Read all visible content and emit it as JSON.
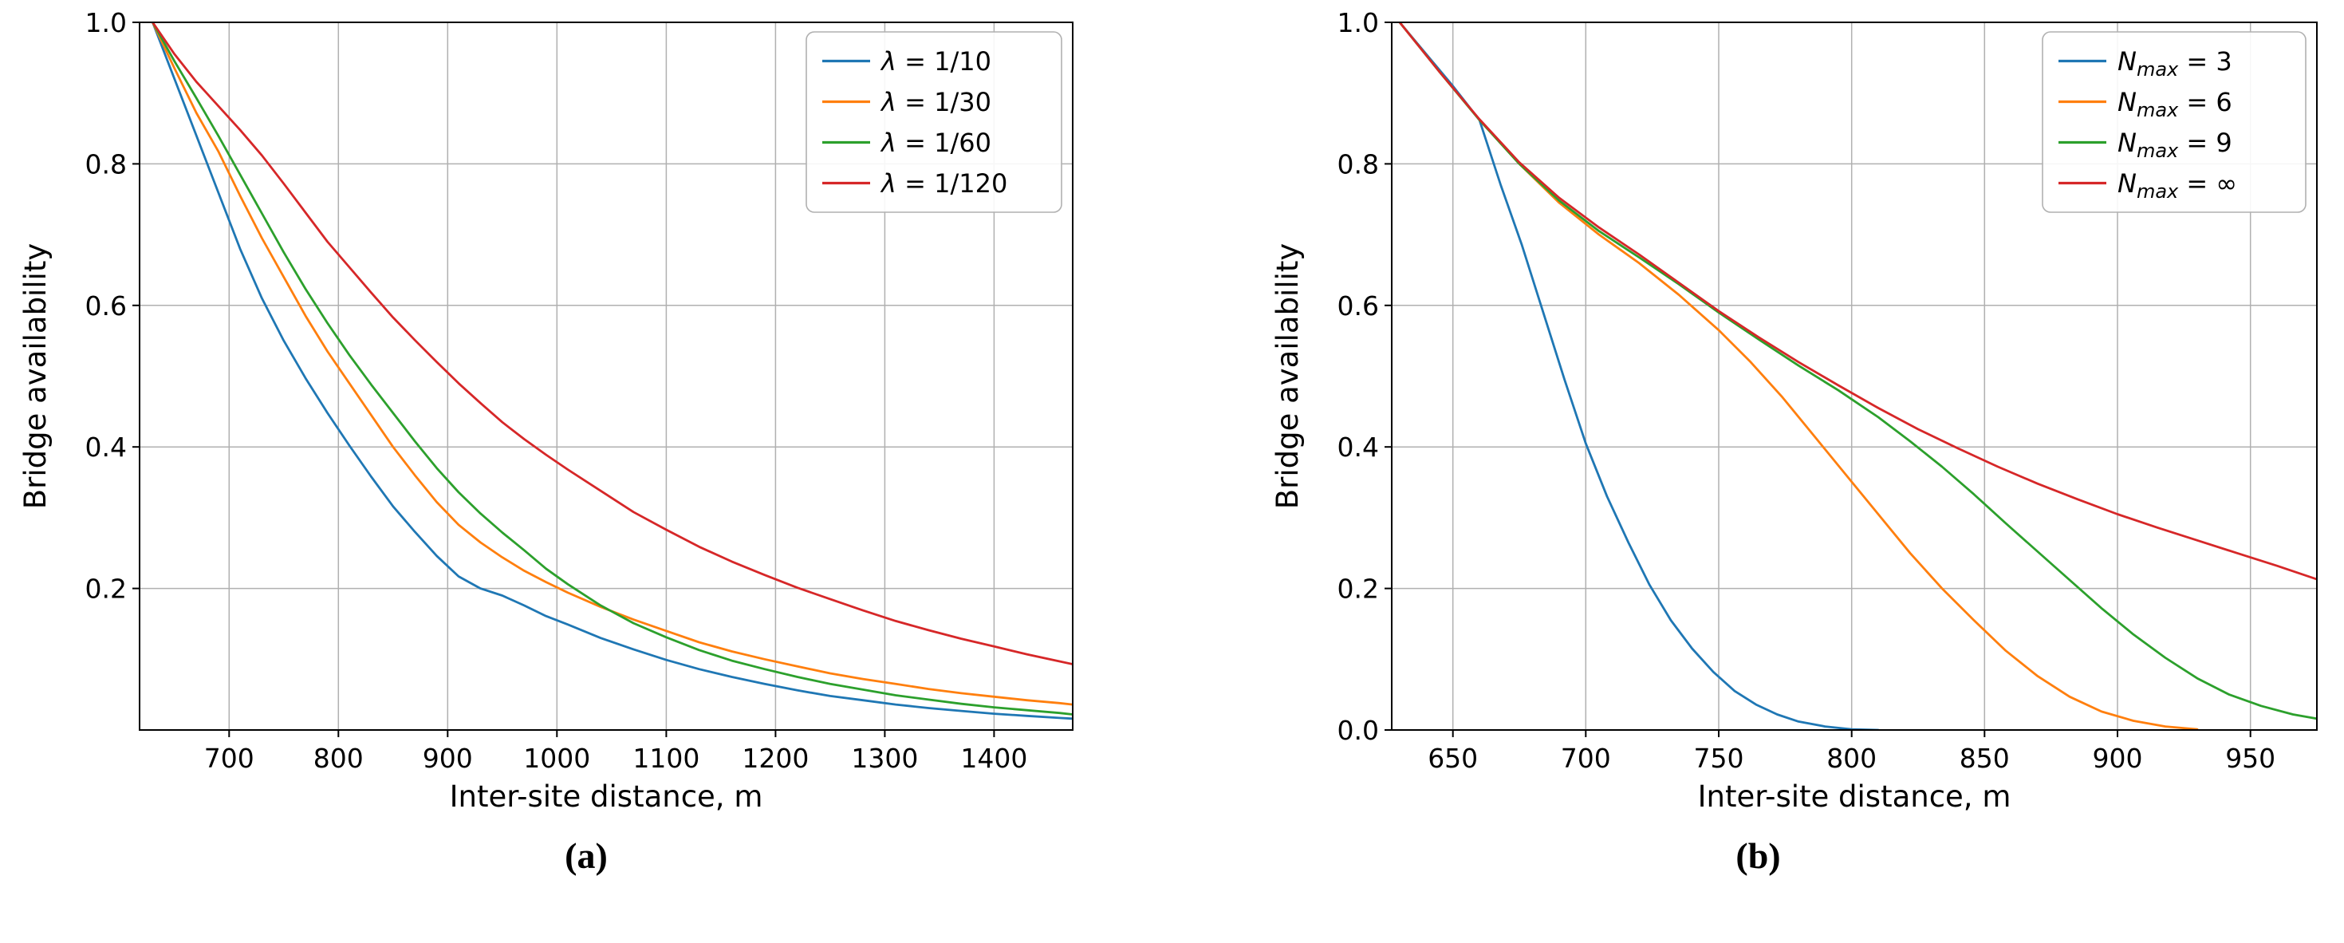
{
  "chart_data": [
    {
      "id": "a",
      "type": "line",
      "caption": "(a)",
      "xlabel": "Inter-site distance, m",
      "ylabel": "Bridge availability",
      "xlim": [
        618,
        1472
      ],
      "ylim": [
        0,
        1.0
      ],
      "xticks": [
        700,
        800,
        900,
        1000,
        1100,
        1200,
        1300,
        1400
      ],
      "yticks": [
        0.2,
        0.4,
        0.6,
        0.8,
        1.0
      ],
      "grid": true,
      "legend_position": "upper right",
      "series": [
        {
          "label": {
            "sym": "λ",
            "sub": "",
            "rest": " = 1/10"
          },
          "color": "#1f77b4",
          "x": [
            630,
            650,
            670,
            690,
            710,
            730,
            750,
            770,
            790,
            810,
            830,
            850,
            870,
            890,
            910,
            930,
            950,
            970,
            990,
            1010,
            1040,
            1070,
            1100,
            1130,
            1160,
            1190,
            1220,
            1250,
            1280,
            1310,
            1340,
            1370,
            1400,
            1430,
            1460,
            1472
          ],
          "y": [
            1.0,
            0.92,
            0.84,
            0.76,
            0.68,
            0.61,
            0.55,
            0.497,
            0.448,
            0.402,
            0.358,
            0.316,
            0.28,
            0.246,
            0.217,
            0.2,
            0.19,
            0.176,
            0.161,
            0.149,
            0.13,
            0.114,
            0.099,
            0.086,
            0.075,
            0.065,
            0.056,
            0.048,
            0.042,
            0.036,
            0.031,
            0.027,
            0.023,
            0.02,
            0.017,
            0.016
          ]
        },
        {
          "label": {
            "sym": "λ",
            "sub": "",
            "rest": " = 1/30"
          },
          "color": "#ff7f0e",
          "x": [
            630,
            650,
            670,
            690,
            710,
            730,
            750,
            770,
            790,
            810,
            830,
            850,
            870,
            890,
            910,
            930,
            950,
            970,
            990,
            1010,
            1040,
            1070,
            1100,
            1130,
            1160,
            1190,
            1220,
            1250,
            1280,
            1310,
            1340,
            1370,
            1400,
            1430,
            1460,
            1472
          ],
          "y": [
            1.0,
            0.935,
            0.872,
            0.818,
            0.755,
            0.695,
            0.64,
            0.585,
            0.535,
            0.49,
            0.445,
            0.4,
            0.36,
            0.322,
            0.29,
            0.265,
            0.244,
            0.225,
            0.209,
            0.194,
            0.174,
            0.156,
            0.14,
            0.124,
            0.111,
            0.1,
            0.09,
            0.08,
            0.072,
            0.065,
            0.058,
            0.052,
            0.047,
            0.042,
            0.038,
            0.036
          ]
        },
        {
          "label": {
            "sym": "λ",
            "sub": "",
            "rest": " = 1/60"
          },
          "color": "#2ca02c",
          "x": [
            630,
            650,
            670,
            690,
            710,
            730,
            750,
            770,
            790,
            810,
            830,
            850,
            870,
            890,
            910,
            930,
            950,
            970,
            990,
            1010,
            1040,
            1070,
            1100,
            1130,
            1160,
            1190,
            1220,
            1250,
            1280,
            1310,
            1340,
            1370,
            1400,
            1430,
            1460,
            1472
          ],
          "y": [
            1.0,
            0.945,
            0.893,
            0.84,
            0.785,
            0.73,
            0.675,
            0.623,
            0.575,
            0.53,
            0.488,
            0.448,
            0.408,
            0.37,
            0.336,
            0.306,
            0.279,
            0.254,
            0.228,
            0.206,
            0.176,
            0.151,
            0.131,
            0.113,
            0.098,
            0.086,
            0.075,
            0.065,
            0.057,
            0.049,
            0.043,
            0.037,
            0.032,
            0.028,
            0.024,
            0.022
          ]
        },
        {
          "label": {
            "sym": "λ",
            "sub": "",
            "rest": " = 1/120"
          },
          "color": "#d62728",
          "x": [
            630,
            650,
            670,
            690,
            710,
            730,
            750,
            770,
            790,
            810,
            830,
            850,
            870,
            890,
            910,
            930,
            950,
            970,
            990,
            1010,
            1040,
            1070,
            1100,
            1130,
            1160,
            1190,
            1220,
            1250,
            1280,
            1310,
            1340,
            1370,
            1400,
            1430,
            1460,
            1472
          ],
          "y": [
            1.0,
            0.955,
            0.916,
            0.882,
            0.848,
            0.812,
            0.772,
            0.731,
            0.69,
            0.654,
            0.618,
            0.583,
            0.551,
            0.52,
            0.49,
            0.462,
            0.435,
            0.411,
            0.389,
            0.368,
            0.338,
            0.308,
            0.283,
            0.259,
            0.238,
            0.219,
            0.201,
            0.185,
            0.169,
            0.154,
            0.141,
            0.129,
            0.118,
            0.107,
            0.097,
            0.093
          ]
        }
      ]
    },
    {
      "id": "b",
      "type": "line",
      "caption": "(b)",
      "xlabel": "Inter-site distance, m",
      "ylabel": "Bridge availability",
      "xlim": [
        627,
        975
      ],
      "ylim": [
        0,
        1.0
      ],
      "xticks": [
        650,
        700,
        750,
        800,
        850,
        900,
        950
      ],
      "yticks": [
        0.0,
        0.2,
        0.4,
        0.6,
        0.8,
        1.0
      ],
      "grid": true,
      "legend_position": "upper right",
      "series": [
        {
          "label": {
            "sym": "N",
            "sub": "max",
            "rest": " = 3"
          },
          "color": "#1f77b4",
          "x": [
            630,
            640,
            650,
            660,
            668,
            676,
            684,
            692,
            700,
            708,
            716,
            724,
            732,
            740,
            748,
            756,
            764,
            772,
            780,
            790,
            800,
            810
          ],
          "y": [
            1.0,
            0.955,
            0.91,
            0.862,
            0.77,
            0.685,
            0.59,
            0.495,
            0.405,
            0.33,
            0.265,
            0.205,
            0.155,
            0.115,
            0.082,
            0.055,
            0.036,
            0.022,
            0.012,
            0.005,
            0.001,
            0.0
          ]
        },
        {
          "label": {
            "sym": "N",
            "sub": "max",
            "rest": " = 6"
          },
          "color": "#ff7f0e",
          "x": [
            630,
            645,
            660,
            675,
            690,
            705,
            720,
            735,
            750,
            762,
            774,
            786,
            798,
            810,
            822,
            834,
            846,
            858,
            870,
            882,
            894,
            906,
            918,
            930
          ],
          "y": [
            1.0,
            0.93,
            0.862,
            0.8,
            0.745,
            0.7,
            0.66,
            0.615,
            0.565,
            0.52,
            0.47,
            0.415,
            0.36,
            0.305,
            0.25,
            0.2,
            0.155,
            0.112,
            0.076,
            0.047,
            0.026,
            0.013,
            0.005,
            0.001
          ]
        },
        {
          "label": {
            "sym": "N",
            "sub": "max",
            "rest": " = 9"
          },
          "color": "#2ca02c",
          "x": [
            630,
            645,
            660,
            675,
            690,
            705,
            720,
            735,
            750,
            765,
            780,
            795,
            810,
            822,
            834,
            846,
            858,
            870,
            882,
            894,
            906,
            918,
            930,
            942,
            954,
            966,
            978,
            990
          ],
          "y": [
            1.0,
            0.93,
            0.862,
            0.8,
            0.748,
            0.705,
            0.668,
            0.63,
            0.59,
            0.552,
            0.515,
            0.48,
            0.442,
            0.408,
            0.372,
            0.333,
            0.292,
            0.252,
            0.212,
            0.172,
            0.135,
            0.102,
            0.073,
            0.05,
            0.034,
            0.022,
            0.014,
            0.008
          ]
        },
        {
          "label": {
            "sym": "N",
            "sub": "max",
            "rest": " = ∞"
          },
          "color": "#d62728",
          "x": [
            630,
            645,
            660,
            675,
            690,
            705,
            720,
            735,
            750,
            765,
            780,
            795,
            810,
            825,
            840,
            855,
            870,
            885,
            900,
            915,
            930,
            945,
            960,
            975,
            990
          ],
          "y": [
            1.0,
            0.93,
            0.863,
            0.802,
            0.752,
            0.71,
            0.672,
            0.632,
            0.592,
            0.555,
            0.52,
            0.487,
            0.455,
            0.425,
            0.398,
            0.372,
            0.348,
            0.326,
            0.305,
            0.286,
            0.268,
            0.25,
            0.232,
            0.213,
            0.192
          ]
        }
      ]
    }
  ]
}
